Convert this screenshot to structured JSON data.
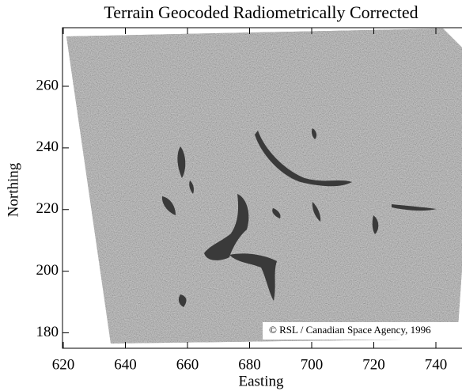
{
  "chart_data": {
    "type": "image",
    "title": "Terrain Geocoded Radiometrically Corrected",
    "x_label": "Easting",
    "y_label": "Northing",
    "annotation": "© RSL / Canadian Space Agency, 1996",
    "xlim": [
      620,
      748
    ],
    "xticks": [
      620,
      640,
      660,
      680,
      700,
      720,
      740
    ],
    "ylim": [
      175,
      279
    ],
    "yticks": [
      180,
      200,
      220,
      240,
      260
    ]
  }
}
